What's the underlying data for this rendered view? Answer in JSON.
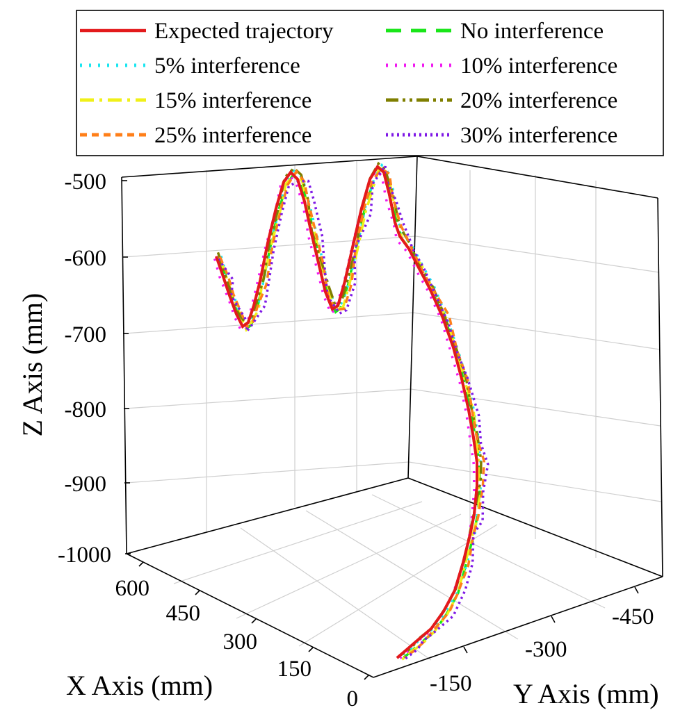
{
  "chart_data": {
    "type": "line3d",
    "xlabel": "X Axis (mm)",
    "ylabel": "Y Axis (mm)",
    "zlabel": "Z Axis (mm)",
    "x_ticks": [
      "0",
      "150",
      "300",
      "450",
      "600"
    ],
    "y_ticks": [
      "-150",
      "-300",
      "-450"
    ],
    "z_ticks": [
      "-500",
      "-600",
      "-700",
      "-800",
      "-900",
      "-1000"
    ],
    "xlim": [
      0,
      600
    ],
    "ylim": [
      -100,
      -500
    ],
    "zlim": [
      -1000,
      -500
    ],
    "grid": true,
    "legend_position": "top",
    "series": [
      {
        "name": "Expected trajectory",
        "color": "#e31a1c",
        "style": "solid"
      },
      {
        "name": "No interference",
        "color": "#19e619",
        "style": "dashed"
      },
      {
        "name": "5% interference",
        "color": "#19e6f0",
        "style": "dotted"
      },
      {
        "name": "10% interference",
        "color": "#f019f0",
        "style": "dotted"
      },
      {
        "name": "15% interference",
        "color": "#f0f019",
        "style": "dashdot"
      },
      {
        "name": "20% interference",
        "color": "#7f7f00",
        "style": "dashdotdot"
      },
      {
        "name": "25% interference",
        "color": "#ff7f19",
        "style": "shortdash"
      },
      {
        "name": "30% interference",
        "color": "#7f19e6",
        "style": "shortdot"
      }
    ],
    "trajectory": {
      "note_units": "mm",
      "start": {
        "x": 600,
        "y": -100,
        "z": -600
      },
      "end": {
        "x": 0,
        "y": -100,
        "z": -1000
      }
    }
  }
}
